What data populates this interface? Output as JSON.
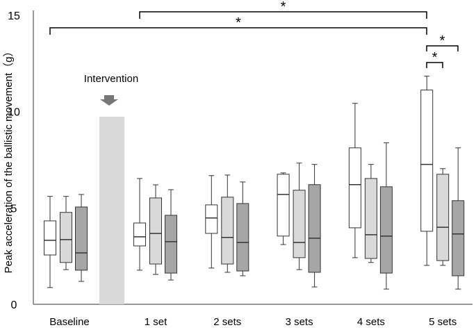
{
  "chart_data": {
    "type": "box",
    "y_label": "Peak acceleration of the ballistic movement（g）",
    "categories": [
      "Baseline",
      "1 set",
      "2 sets",
      "3 sets",
      "4 sets",
      "5 sets"
    ],
    "ylim": [
      0,
      15
    ],
    "yticks": [
      0,
      5,
      10,
      15
    ],
    "intervention_label": "Intervention",
    "annotations": [
      "*",
      "*",
      "*",
      "*"
    ],
    "series": [
      {
        "color": "#ffffff",
        "values": [
          {
            "min": 0.87,
            "q1": 2.56,
            "median": 3.32,
            "q3": 4.33,
            "max": 5.6
          },
          {
            "min": 1.77,
            "q1": 3.03,
            "median": 3.5,
            "q3": 4.22,
            "max": 6.53
          },
          {
            "min": 1.88,
            "q1": 3.68,
            "median": 4.48,
            "q3": 5.16,
            "max": 6.68
          },
          {
            "min": 3.1,
            "q1": 3.54,
            "median": 5.7,
            "q3": 6.75,
            "max": 6.82
          },
          {
            "min": 2.42,
            "q1": 3.97,
            "median": 6.21,
            "q3": 8.12,
            "max": 10.43
          },
          {
            "min": 2.02,
            "q1": 3.79,
            "median": 7.26,
            "q3": 11.12,
            "max": 11.84
          }
        ]
      },
      {
        "color": "#d9d9d9",
        "values": [
          {
            "min": 1.8,
            "q1": 2.17,
            "median": 3.36,
            "q3": 4.77,
            "max": 5.6
          },
          {
            "min": 1.55,
            "q1": 2.09,
            "median": 3.68,
            "q3": 5.52,
            "max": 6.2
          },
          {
            "min": 1.66,
            "q1": 2.09,
            "median": 3.47,
            "q3": 5.56,
            "max": 6.71
          },
          {
            "min": 1.8,
            "q1": 2.42,
            "median": 3.21,
            "q3": 5.92,
            "max": 7.33
          },
          {
            "min": 2.17,
            "q1": 2.38,
            "median": 3.61,
            "q3": 6.53,
            "max": 7.26
          },
          {
            "min": 2.02,
            "q1": 2.27,
            "median": 4.0,
            "q3": 6.75,
            "max": 7.04
          }
        ]
      },
      {
        "color": "#a6a6a6",
        "values": [
          {
            "min": 1.19,
            "q1": 1.77,
            "median": 2.67,
            "q3": 5.05,
            "max": 5.7
          },
          {
            "min": 1.26,
            "q1": 1.62,
            "median": 3.25,
            "q3": 4.62,
            "max": 5.95
          },
          {
            "min": 1.48,
            "q1": 1.73,
            "median": 3.21,
            "q3": 5.23,
            "max": 6.35
          },
          {
            "min": 0.9,
            "q1": 1.66,
            "median": 3.43,
            "q3": 6.21,
            "max": 7.26
          },
          {
            "min": 0.79,
            "q1": 1.62,
            "median": 3.54,
            "q3": 6.1,
            "max": 8.38
          },
          {
            "min": 0.79,
            "q1": 1.48,
            "median": 3.65,
            "q3": 5.38,
            "max": 8.12
          }
        ]
      }
    ]
  }
}
